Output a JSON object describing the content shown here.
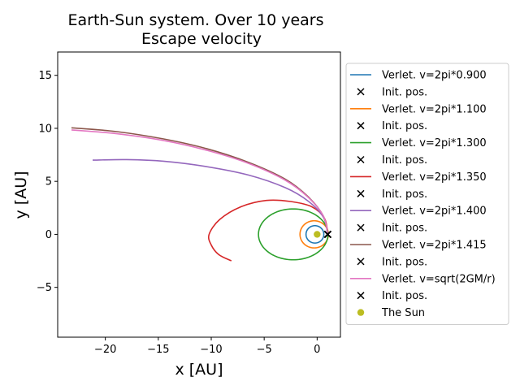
{
  "chart_data": {
    "type": "line",
    "title": "Earth-Sun system. Over 10 years",
    "subtitle": "Escape velocity",
    "xlabel": "x [AU]",
    "ylabel": "y [AU]",
    "xlim": [
      -24.5,
      2.2
    ],
    "ylim": [
      -9.7,
      17.2
    ],
    "xticks": [
      -20,
      -15,
      -10,
      -5,
      0
    ],
    "xtick_labels": [
      "−20",
      "−15",
      "−10",
      "−5",
      "0"
    ],
    "yticks": [
      -5,
      0,
      5,
      10,
      15
    ],
    "ytick_labels": [
      "−5",
      "0",
      "5",
      "10",
      "15"
    ],
    "grid": false,
    "legend_position": "outside-right",
    "series": [
      {
        "name": "Verlet. v=2pi*0.900",
        "color": "#1f77b4",
        "kind": "orbit",
        "orbit": {
          "cx": -0.21,
          "cy": 0,
          "rx": 0.84,
          "ry": 0.82
        }
      },
      {
        "name": "Verlet. v=2pi*1.100",
        "color": "#ff7f0e",
        "kind": "orbit",
        "orbit": {
          "cx": -0.28,
          "cy": 0,
          "rx": 1.34,
          "ry": 1.28
        }
      },
      {
        "name": "Verlet. v=2pi*1.300",
        "color": "#2ca02c",
        "kind": "orbit",
        "orbit": {
          "cx": -2.26,
          "cy": 0,
          "rx": 3.28,
          "ry": 2.4
        }
      },
      {
        "name": "Verlet. v=2pi*1.350",
        "color": "#d62728",
        "kind": "path",
        "points": [
          [
            1,
            0
          ],
          [
            0.7,
            1.5
          ],
          [
            -0.5,
            2.6
          ],
          [
            -2.5,
            3.1
          ],
          [
            -4.8,
            3.2
          ],
          [
            -7.2,
            2.6
          ],
          [
            -9.2,
            1.4
          ],
          [
            -10.2,
            0
          ],
          [
            -10,
            -1
          ],
          [
            -9.3,
            -1.9
          ],
          [
            -8.1,
            -2.5
          ]
        ]
      },
      {
        "name": "Verlet. v=2pi*1.400",
        "color": "#9467bd",
        "kind": "path",
        "points": [
          [
            1,
            0
          ],
          [
            0.6,
            1.6
          ],
          [
            -0.8,
            3.1
          ],
          [
            -3,
            4.4
          ],
          [
            -6.5,
            5.6
          ],
          [
            -10.5,
            6.4
          ],
          [
            -14.5,
            6.9
          ],
          [
            -18,
            7.05
          ],
          [
            -21.2,
            7.0
          ]
        ]
      },
      {
        "name": "Verlet. v=2pi*1.415",
        "color": "#8c564b",
        "kind": "path",
        "points": [
          [
            1,
            0
          ],
          [
            0.6,
            1.7
          ],
          [
            -0.8,
            3.5
          ],
          [
            -3,
            5.2
          ],
          [
            -6.5,
            6.8
          ],
          [
            -10.5,
            8.1
          ],
          [
            -14.5,
            9.0
          ],
          [
            -19,
            9.7
          ],
          [
            -23.2,
            10.05
          ]
        ]
      },
      {
        "name": "Verlet. v=sqrt(2GM/r)",
        "color": "#e377c2",
        "kind": "path",
        "points": [
          [
            1,
            0
          ],
          [
            0.6,
            1.7
          ],
          [
            -0.8,
            3.45
          ],
          [
            -3,
            5.1
          ],
          [
            -6.5,
            6.7
          ],
          [
            -10.5,
            7.95
          ],
          [
            -14.5,
            8.85
          ],
          [
            -19,
            9.5
          ],
          [
            -23.2,
            9.85
          ]
        ]
      }
    ],
    "init_pos": {
      "label": "Init. pos.",
      "x": 1,
      "y": 0,
      "color": "#000000"
    },
    "sun": {
      "label": "The Sun",
      "x": 0,
      "y": 0,
      "color": "#bcbd22"
    }
  }
}
